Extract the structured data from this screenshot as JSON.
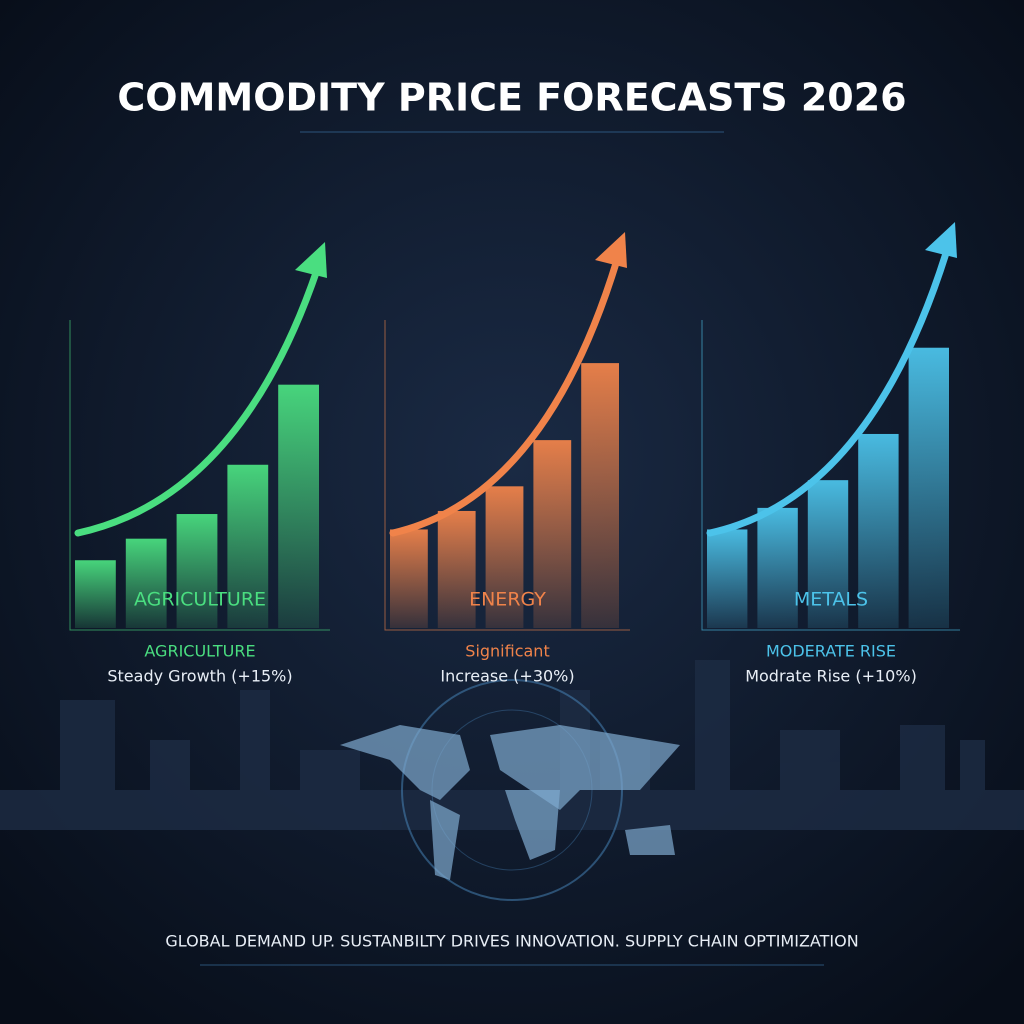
{
  "title": "COMMODITY PRICE FORECASTS 2026",
  "footer": "GLOBAL DEMAND UP. SUSTANBILTY DRIVES INNOVATION. SUPPLY CHAIN OPTIMIZATION",
  "chart_data": [
    {
      "type": "bar",
      "label": "AGRICULTURE",
      "subtitle": "AGRICULTURE",
      "annotation": "Steady Growth (+15%)",
      "categories": [
        null,
        null,
        null,
        null,
        null
      ],
      "values": [
        22,
        29,
        37,
        53,
        79
      ],
      "color": "#4ade80",
      "ylim": [
        0,
        100
      ]
    },
    {
      "type": "bar",
      "label": "ENERGY",
      "subtitle": "Significant",
      "annotation": "Increase (+30%)",
      "categories": [
        null,
        null,
        null,
        null,
        null
      ],
      "values": [
        32,
        38,
        46,
        61,
        86
      ],
      "color": "#f0834a",
      "ylim": [
        0,
        100
      ]
    },
    {
      "type": "bar",
      "label": "METALS",
      "subtitle": "MODERATE RISE",
      "annotation": "Modrate Rise (+10%)",
      "categories": [
        null,
        null,
        null,
        null,
        null
      ],
      "values": [
        32,
        39,
        48,
        63,
        91
      ],
      "color": "#4cc3ea",
      "ylim": [
        0,
        100
      ]
    }
  ]
}
